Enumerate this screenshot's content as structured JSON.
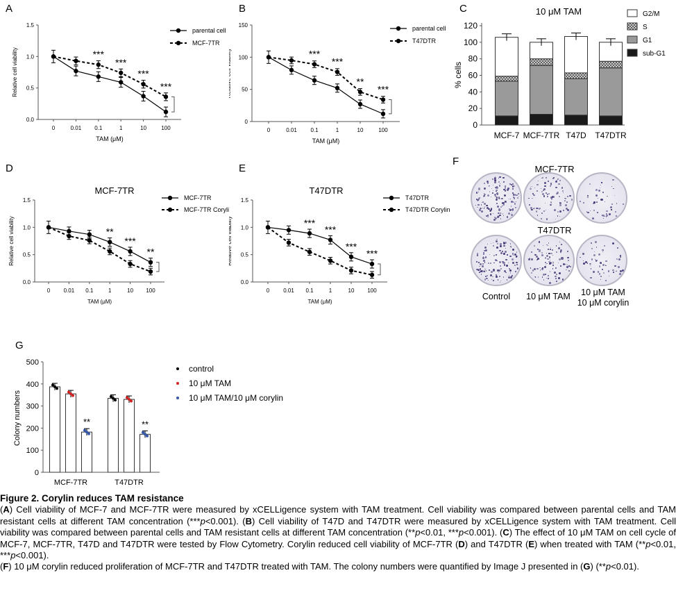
{
  "panels": {
    "A": {
      "label": "A",
      "chart_data": {
        "type": "line",
        "title": "",
        "xlabel": "TAM (μM)",
        "ylabel": "Relative cell viability",
        "categories": [
          "0",
          "0.01",
          "0.1",
          "1",
          "10",
          "100"
        ],
        "yticks": [
          "0.0",
          "0.5",
          "1.0",
          "1.5"
        ],
        "ylim": [
          0,
          1.5
        ],
        "series": [
          {
            "name": "parental cell",
            "style": "solid",
            "values": [
              1.0,
              0.77,
              0.68,
              0.59,
              0.37,
              0.12
            ]
          },
          {
            "name": "MCF-7TR",
            "style": "dashed",
            "values": [
              1.0,
              0.93,
              0.87,
              0.74,
              0.56,
              0.36
            ]
          }
        ],
        "annotations": [
          "***",
          "***",
          "***",
          "***"
        ]
      }
    },
    "B": {
      "label": "B",
      "chart_data": {
        "type": "line",
        "title": "",
        "xlabel": "TAM (μM)",
        "ylabel": "Relative cell viability",
        "categories": [
          "0",
          "0.01",
          "0.1",
          "1",
          "10",
          "100"
        ],
        "yticks": [
          "0",
          "50",
          "100",
          "150"
        ],
        "ylim": [
          0,
          150
        ],
        "series": [
          {
            "name": "parental cell",
            "style": "solid",
            "values": [
              100,
              80,
              64,
              52,
              27,
              12
            ]
          },
          {
            "name": "T47DTR",
            "style": "dashed",
            "values": [
              100,
              95,
              89,
              77,
              46,
              34
            ]
          }
        ],
        "annotations": [
          "***",
          "***",
          "**",
          "***"
        ]
      }
    },
    "C": {
      "label": "C",
      "chart_data": {
        "type": "bar",
        "stacked": true,
        "title": "10 μM TAM",
        "xlabel": "",
        "ylabel": "% cells",
        "categories": [
          "MCF-7",
          "MCF-7TR",
          "T47D",
          "T47DTR"
        ],
        "yticks": [
          "0",
          "20",
          "40",
          "60",
          "80",
          "100",
          "120"
        ],
        "ylim": [
          0,
          120
        ],
        "series": [
          {
            "name": "sub-G1",
            "color": "#1a1a1a",
            "values": [
              11,
              13,
              12,
              11
            ]
          },
          {
            "name": "G1",
            "color": "#9a9a9a",
            "values": [
              42,
              59,
              44,
              58
            ]
          },
          {
            "name": "S",
            "color": "#cfcfcf",
            "values": [
              6,
              8,
              7,
              8
            ]
          },
          {
            "name": "G2/M",
            "color": "#ffffff",
            "values": [
              47,
              20,
              44,
              23
            ]
          }
        ]
      }
    },
    "D": {
      "label": "D",
      "chart_data": {
        "type": "line",
        "title": "MCF-7TR",
        "xlabel": "TAM (μM)",
        "ylabel": "Relative cell viability",
        "categories": [
          "0",
          "0.01",
          "0.1",
          "1",
          "10",
          "100"
        ],
        "yticks": [
          "0.0",
          "0.5",
          "1.0",
          "1.5"
        ],
        "ylim": [
          0,
          1.5
        ],
        "series": [
          {
            "name": "MCF-7TR",
            "style": "solid",
            "values": [
              1.0,
              0.93,
              0.87,
              0.73,
              0.56,
              0.36
            ]
          },
          {
            "name": "MCF-7TR Corylin",
            "style": "dashed",
            "values": [
              1.0,
              0.84,
              0.76,
              0.56,
              0.33,
              0.19
            ]
          }
        ],
        "annotations": [
          "**",
          "***",
          "**"
        ]
      }
    },
    "E": {
      "label": "E",
      "chart_data": {
        "type": "line",
        "title": "T47DTR",
        "xlabel": "TAM (μM)",
        "ylabel": "Relative cell viability",
        "categories": [
          "0",
          "0.01",
          "0.1",
          "1",
          "10",
          "100"
        ],
        "yticks": [
          "0.0",
          "0.5",
          "1.0",
          "1.5"
        ],
        "ylim": [
          0,
          1.5
        ],
        "series": [
          {
            "name": "T47DTR",
            "style": "solid",
            "values": [
              1.0,
              0.95,
              0.89,
              0.77,
              0.46,
              0.33
            ]
          },
          {
            "name": "T47DTR Corylin",
            "style": "dashed",
            "values": [
              1.0,
              0.72,
              0.55,
              0.39,
              0.21,
              0.13
            ]
          }
        ],
        "annotations": [
          "***",
          "***",
          "***",
          "***"
        ]
      }
    },
    "F": {
      "label": "F",
      "row_labels": [
        "MCF-7TR",
        "T47DTR"
      ],
      "col_labels": [
        "Control",
        "10 μM TAM",
        "10 μM TAM",
        "10 μM corylin"
      ]
    },
    "G": {
      "label": "G",
      "chart_data": {
        "type": "bar",
        "title": "",
        "xlabel": "",
        "ylabel": "Colony numbers",
        "categories": [
          "MCF-7TR",
          "T47DTR"
        ],
        "yticks": [
          "0",
          "100",
          "200",
          "300",
          "400",
          "500"
        ],
        "ylim": [
          0,
          500
        ],
        "series": [
          {
            "name": "control",
            "color": "#000000",
            "values": [
              387,
              335
            ]
          },
          {
            "name": "10 μM TAM",
            "color": "#d42020",
            "values": [
              355,
              330
            ]
          },
          {
            "name": "10 μM TAM/10 μM corylin",
            "color": "#3355aa",
            "values": [
              182,
              172
            ]
          }
        ],
        "annotations": [
          "**",
          "**"
        ]
      }
    }
  },
  "caption": {
    "title": "Figure 2. Corylin reduces TAM resistance",
    "p1a": "(",
    "A": "A",
    "p1b": ") Cell viability of MCF-7 and MCF-7TR were measured by xCELLigence system with TAM treatment. Cell viability was compared between parental cells and TAM resistant cells at different TAM concentration (***",
    "p1": "p",
    "p1c": "<0.001). (",
    "B": "B",
    "p2a": ") Cell viability of T47D and T47DTR were measured by xCELLigence system with TAM treatment. Cell viability was compared between parental cells and TAM resistant cells at different TAM concentration (**",
    "p2": "p",
    "p2b": "<0.01, ***",
    "p3": "p",
    "p3b": "<0.001). (",
    "C": "C",
    "p4a": ") The effect of 10 μM TAM on cell cycle of MCF-7, MCF-7TR, T47D and T47DTR were tested by Flow Cytometry. Corylin reduced cell viability of MCF-7TR (",
    "D": "D",
    "p4b": ") and T47DTR (",
    "E": "E",
    "p4c": ") when treated with TAM (**",
    "p5": "p",
    "p5b": "<0.01, ***",
    "p6": "p",
    "p6b": "<0.001).",
    "p7a": "(",
    "F": "F",
    "p7b": ") 10 μM corylin reduced proliferation of MCF-7TR and T47DTR treated with TAM. The colony numbers were quantified by Image J presented in (",
    "G": "G",
    "p7c": ") (**",
    "p8": "p",
    "p8b": "<0.01)."
  }
}
